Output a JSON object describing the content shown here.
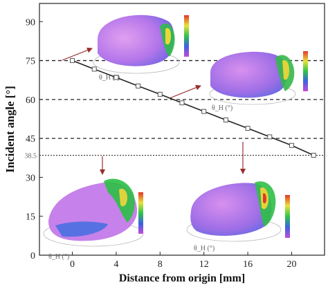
{
  "chart_data": {
    "type": "line",
    "xlabel": "Distance from origin [mm]",
    "ylabel": "Incident angle [°]",
    "xlim": [
      -3,
      23
    ],
    "ylim": [
      0,
      97
    ],
    "xticks": [
      0,
      4,
      8,
      12,
      16,
      20
    ],
    "yticks": [
      0,
      15,
      30,
      45,
      60,
      75,
      90
    ],
    "grid": false,
    "series": [
      {
        "x": [
          0,
          2,
          4,
          6,
          8,
          10,
          12,
          14,
          16,
          18,
          20,
          22
        ],
        "y": [
          75,
          71.7,
          68.5,
          65.2,
          62.0,
          58.7,
          55.4,
          52.1,
          48.9,
          45.6,
          42.3,
          38.5
        ]
      }
    ],
    "reference_lines": [
      {
        "y": 75,
        "label": ""
      },
      {
        "y": 60,
        "label": ""
      },
      {
        "y": 45,
        "label": ""
      },
      {
        "y": 38.5,
        "label": "38.5"
      }
    ],
    "insets": [
      {
        "name": "inset-75",
        "angle_label": "θ_H (°)"
      },
      {
        "name": "inset-60",
        "angle_label": "θ_H (°)"
      },
      {
        "name": "inset-45",
        "angle_label": "θ_H (°)"
      },
      {
        "name": "inset-38-5",
        "angle_label": "θ_H (°)"
      }
    ]
  },
  "colors": {
    "line": "#222222",
    "marker_fill": "#ffffff",
    "marker_stroke": "#555555",
    "arrow": "#9b2d2d",
    "dish_purple": "#a35fd6",
    "dish_violet": "#d27ee8",
    "dish_blue": "#4a6fe0",
    "dish_green": "#29c043",
    "dish_red": "#e03a24"
  }
}
